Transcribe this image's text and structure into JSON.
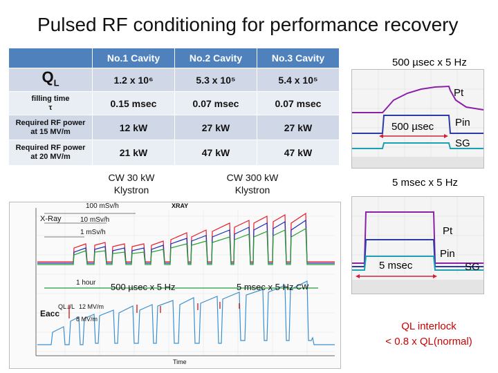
{
  "title": "Pulsed RF conditioning for performance recovery",
  "table": {
    "headers": [
      "No.1 Cavity",
      "No.2 Cavity",
      "No.3 Cavity"
    ],
    "rows": [
      {
        "label": "QL",
        "label_main": "Q",
        "label_sub": "L",
        "values": [
          "1.2 x 10⁶",
          "5.3 x 10⁵",
          "5.4 x 10⁵"
        ]
      },
      {
        "label_line1": "filling time",
        "label_line2": "τ",
        "values": [
          "0.15 msec",
          "0.07 msec",
          "0.07 msec"
        ]
      },
      {
        "label_line1": "Required RF power",
        "label_line2": "at 15 MV/m",
        "values": [
          "12 kW",
          "27 kW",
          "27 kW"
        ]
      },
      {
        "label_line1": "Required RF power",
        "label_line2": "at 20 MV/m",
        "values": [
          "21 kW",
          "47 kW",
          "47 kW"
        ]
      }
    ]
  },
  "klystrons": {
    "cw30_line1": "CW 30 kW",
    "cw30_line2": "Klystron",
    "cw300_line1": "CW 300 kW",
    "cw300_line2": "Klystron"
  },
  "scope_top": {
    "header": "500 µsec x 5 Hz",
    "pt": "Pt",
    "pin": "Pin",
    "sg": "SG",
    "width": "500 µsec"
  },
  "scope_bottom": {
    "header": "5 msec x 5 Hz",
    "pt": "Pt",
    "pin": "Pin",
    "sg": "SG",
    "width": "5 msec"
  },
  "chart": {
    "title": "XRAY",
    "xray_label": "X-Ray",
    "rad_100": "100 mSv/h",
    "rad_10": "10 mSv/h",
    "rad_1": "1 mSv/h",
    "span_1hour": "1 hour",
    "span_500us": "500 µsec x 5 Hz",
    "span_5ms": "5 msec x 5 Hz",
    "span_cw": "CW",
    "eacc_label": "Eacc",
    "eacc_12": "12 MV/m",
    "eacc_8": "8 MV/m",
    "qldown_label": "QL↓/L",
    "xlabel": "Time",
    "colors": {
      "xray_red": "#e8192c",
      "xray_blue": "#1d2fb8",
      "xray_green": "#22a02e",
      "eacc": "#3a8fd0"
    }
  },
  "note": {
    "line1": "QL interlock",
    "line2": "< 0.8 x QL(normal)"
  }
}
